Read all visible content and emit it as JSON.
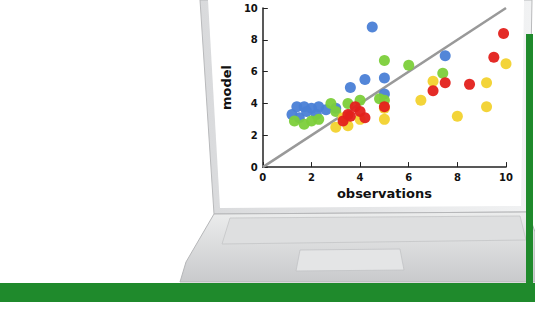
{
  "chart_data": {
    "type": "scatter",
    "x_label": "observations",
    "y_label": "model",
    "xlim": [
      0,
      10
    ],
    "ylim": [
      0,
      10
    ],
    "xticks": [
      0,
      2,
      4,
      6,
      8,
      10
    ],
    "yticks": [
      0,
      2,
      4,
      6,
      8,
      10
    ],
    "grid": false,
    "series": [
      {
        "type": "line",
        "color": "#999999",
        "x": [
          0,
          10
        ],
        "values": [
          0,
          10
        ]
      },
      {
        "color": "#4a7fd6",
        "x": [
          1.2,
          1.4,
          1.7,
          2.0,
          2.3,
          1.5,
          2.6,
          3.0,
          2.2,
          3.6,
          4.2,
          5.0,
          5.0,
          4.5,
          7.5,
          1.8
        ],
        "values": [
          3.3,
          3.8,
          3.8,
          3.7,
          3.8,
          3.1,
          3.6,
          3.7,
          3.3,
          5.0,
          5.5,
          5.6,
          4.6,
          8.8,
          7.0,
          3.5
        ]
      },
      {
        "color": "#7ccf3a",
        "x": [
          1.3,
          2.0,
          2.3,
          2.8,
          3.0,
          4.0,
          5.0,
          5.0,
          4.8,
          6.0,
          7.4,
          1.7,
          3.5
        ],
        "values": [
          2.9,
          2.9,
          3.0,
          4.0,
          3.5,
          4.2,
          4.2,
          6.7,
          4.3,
          6.4,
          5.9,
          2.7,
          4.0
        ]
      },
      {
        "color": "#f2d22e",
        "x": [
          3.0,
          3.5,
          4.0,
          5.0,
          5.0,
          6.5,
          7.0,
          8.0,
          9.2,
          9.2,
          10.0,
          3.3
        ],
        "values": [
          2.5,
          2.6,
          3.0,
          3.0,
          3.7,
          4.2,
          5.4,
          3.2,
          3.8,
          5.3,
          6.5,
          3.1
        ]
      },
      {
        "color": "#e3201b",
        "x": [
          3.3,
          3.6,
          3.8,
          4.0,
          3.5,
          4.2,
          5.0,
          7.0,
          7.5,
          8.5,
          9.5,
          9.9
        ],
        "values": [
          2.9,
          3.2,
          3.8,
          3.5,
          3.3,
          3.1,
          3.8,
          4.8,
          5.3,
          5.2,
          6.9,
          8.4
        ]
      }
    ]
  }
}
